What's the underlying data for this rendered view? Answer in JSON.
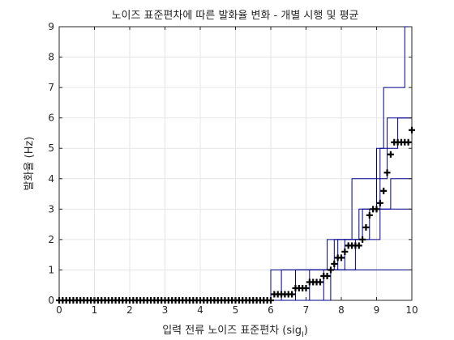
{
  "chart_data": {
    "type": "line",
    "title": "노이즈 표준편차에 따른 발화율 변화 - 개별 시행 및 평균",
    "xlabel": "입력 전류 노이즈 표준편차 (sig",
    "xlabel_sub": "I",
    "xlabel_end": ")",
    "ylabel": "발화율 (Hz)",
    "xlim": [
      0,
      10
    ],
    "ylim": [
      0,
      9
    ],
    "xticks": [
      0,
      1,
      2,
      3,
      4,
      5,
      6,
      7,
      8,
      9,
      10
    ],
    "yticks": [
      0,
      1,
      2,
      3,
      4,
      5,
      6,
      7,
      8,
      9
    ],
    "grid": true,
    "trial_color": "#00008B",
    "mean_color": "#000000",
    "trials": [
      {
        "points": [
          [
            0,
            0
          ],
          [
            6.0,
            0
          ],
          [
            6.0,
            1
          ],
          [
            10,
            1
          ]
        ]
      },
      {
        "points": [
          [
            0,
            0
          ],
          [
            6.3,
            0
          ],
          [
            6.3,
            1
          ],
          [
            7.8,
            1
          ],
          [
            7.8,
            2
          ],
          [
            8.5,
            2
          ],
          [
            8.5,
            3
          ],
          [
            9.0,
            3
          ],
          [
            9.0,
            5
          ],
          [
            9.2,
            5
          ],
          [
            9.2,
            7
          ],
          [
            9.8,
            7
          ],
          [
            9.8,
            9
          ],
          [
            10,
            9
          ]
        ]
      },
      {
        "points": [
          [
            0,
            0
          ],
          [
            6.7,
            0
          ],
          [
            6.7,
            1
          ],
          [
            7.6,
            1
          ],
          [
            7.6,
            2
          ],
          [
            8.3,
            2
          ],
          [
            8.3,
            4
          ],
          [
            9.3,
            4
          ],
          [
            9.3,
            6
          ],
          [
            10,
            6
          ]
        ]
      },
      {
        "points": [
          [
            0,
            0
          ],
          [
            7.1,
            0
          ],
          [
            7.1,
            1
          ],
          [
            7.9,
            1
          ],
          [
            7.9,
            2
          ],
          [
            8.6,
            2
          ],
          [
            8.6,
            3
          ],
          [
            9.1,
            3
          ],
          [
            9.1,
            5
          ],
          [
            9.6,
            5
          ],
          [
            9.6,
            6
          ],
          [
            10,
            6
          ]
        ]
      },
      {
        "points": [
          [
            0,
            0
          ],
          [
            7.5,
            0
          ],
          [
            7.5,
            1
          ],
          [
            8.1,
            1
          ],
          [
            8.1,
            2
          ],
          [
            8.8,
            2
          ],
          [
            8.8,
            3
          ],
          [
            10,
            3
          ]
        ]
      },
      {
        "points": [
          [
            0,
            0
          ],
          [
            7.7,
            0
          ],
          [
            7.7,
            1
          ],
          [
            8.4,
            1
          ],
          [
            8.4,
            2
          ],
          [
            9.1,
            2
          ],
          [
            9.1,
            3
          ],
          [
            9.4,
            3
          ],
          [
            9.4,
            4
          ],
          [
            10,
            4
          ]
        ]
      }
    ],
    "mean": {
      "x": [
        0,
        0.1,
        0.2,
        0.3,
        0.4,
        0.5,
        0.6,
        0.7,
        0.8,
        0.9,
        1.0,
        1.1,
        1.2,
        1.3,
        1.4,
        1.5,
        1.6,
        1.7,
        1.8,
        1.9,
        2.0,
        2.1,
        2.2,
        2.3,
        2.4,
        2.5,
        2.6,
        2.7,
        2.8,
        2.9,
        3.0,
        3.1,
        3.2,
        3.3,
        3.4,
        3.5,
        3.6,
        3.7,
        3.8,
        3.9,
        4.0,
        4.1,
        4.2,
        4.3,
        4.4,
        4.5,
        4.6,
        4.7,
        4.8,
        4.9,
        5.0,
        5.1,
        5.2,
        5.3,
        5.4,
        5.5,
        5.6,
        5.7,
        5.8,
        5.9,
        6.0,
        6.1,
        6.2,
        6.3,
        6.4,
        6.5,
        6.6,
        6.7,
        6.8,
        6.9,
        7.0,
        7.1,
        7.2,
        7.3,
        7.4,
        7.5,
        7.6,
        7.7,
        7.8,
        7.9,
        8.0,
        8.1,
        8.2,
        8.3,
        8.4,
        8.5,
        8.6,
        8.7,
        8.8,
        8.9,
        9.0,
        9.1,
        9.2,
        9.3,
        9.4,
        9.5,
        9.6,
        9.7,
        9.8,
        9.9,
        10.0
      ],
      "y": [
        0,
        0,
        0,
        0,
        0,
        0,
        0,
        0,
        0,
        0,
        0,
        0,
        0,
        0,
        0,
        0,
        0,
        0,
        0,
        0,
        0,
        0,
        0,
        0,
        0,
        0,
        0,
        0,
        0,
        0,
        0,
        0,
        0,
        0,
        0,
        0,
        0,
        0,
        0,
        0,
        0,
        0,
        0,
        0,
        0,
        0,
        0,
        0,
        0,
        0,
        0,
        0,
        0,
        0,
        0,
        0,
        0,
        0,
        0,
        0,
        0,
        0.2,
        0.2,
        0.2,
        0.2,
        0.2,
        0.2,
        0.4,
        0.4,
        0.4,
        0.4,
        0.6,
        0.6,
        0.6,
        0.6,
        0.8,
        0.8,
        1.0,
        1.2,
        1.4,
        1.4,
        1.6,
        1.8,
        1.8,
        1.8,
        1.8,
        2.0,
        2.4,
        2.8,
        3.0,
        3.0,
        3.2,
        3.6,
        4.2,
        4.8,
        5.2,
        5.2,
        5.2,
        5.2,
        5.2,
        5.6
      ]
    }
  }
}
